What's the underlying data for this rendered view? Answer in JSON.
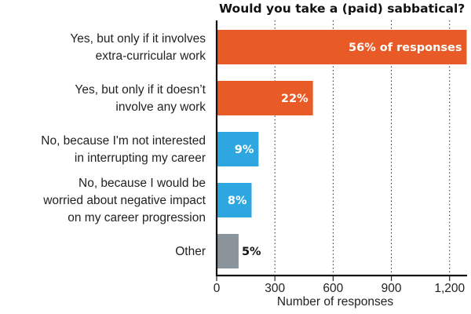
{
  "chart_data": {
    "type": "bar",
    "orientation": "horizontal",
    "title": "Would you take a (paid) sabbatical?",
    "xlabel": "Number of responses",
    "ylabel": "",
    "xlim": [
      0,
      1290
    ],
    "xticks": [
      0,
      300,
      600,
      900,
      1200
    ],
    "xtick_labels": [
      "0",
      "300",
      "600",
      "900",
      "1,200"
    ],
    "grid": "vertical dotted",
    "categories": [
      [
        "Yes, but only if it involves",
        "extra-curricular work"
      ],
      [
        "Yes, but only if it doesn’t",
        "involve any work"
      ],
      [
        "No, because I'm not interested",
        "in interrupting my career"
      ],
      [
        "No, because I would be",
        "worried about negative impact",
        "on my career progression"
      ],
      [
        "Other"
      ]
    ],
    "values": [
      1288,
      496,
      216,
      180,
      113
    ],
    "bar_labels": [
      "56% of responses",
      "22%",
      "9%",
      "8%",
      "5%"
    ],
    "label_placement": [
      "inside",
      "inside",
      "inside",
      "inside",
      "outside"
    ],
    "colors": [
      "#e85a26",
      "#e85a26",
      "#2ea7e0",
      "#2ea7e0",
      "#8b949b"
    ],
    "label_colors": [
      "#ffffff",
      "#ffffff",
      "#ffffff",
      "#ffffff",
      "#111111"
    ]
  }
}
